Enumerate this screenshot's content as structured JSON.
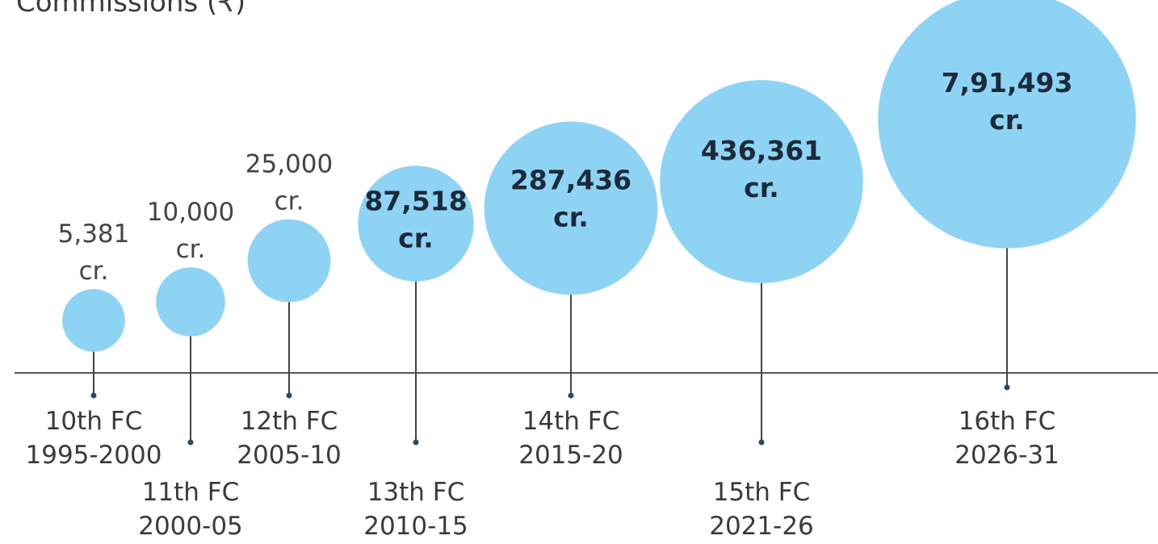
{
  "chart_data": {
    "type": "bubble",
    "title": "Commissions (₹)",
    "categories": [
      "10th FC",
      "11th FC",
      "12th FC",
      "13th FC",
      "14th FC",
      "15th FC",
      "16th FC"
    ],
    "periods": [
      "1995-2000",
      "2000-05",
      "2005-10",
      "2010-15",
      "2015-20",
      "2021-26",
      "2026-31"
    ],
    "values": [
      5381,
      10000,
      25000,
      87518,
      287436,
      436361,
      791493
    ],
    "value_labels": [
      "5,381",
      "10,000",
      "25,000",
      "87,518",
      "287,436",
      "436,361",
      "7,91,493"
    ],
    "unit": "cr.",
    "color": "#8fd3f4"
  }
}
